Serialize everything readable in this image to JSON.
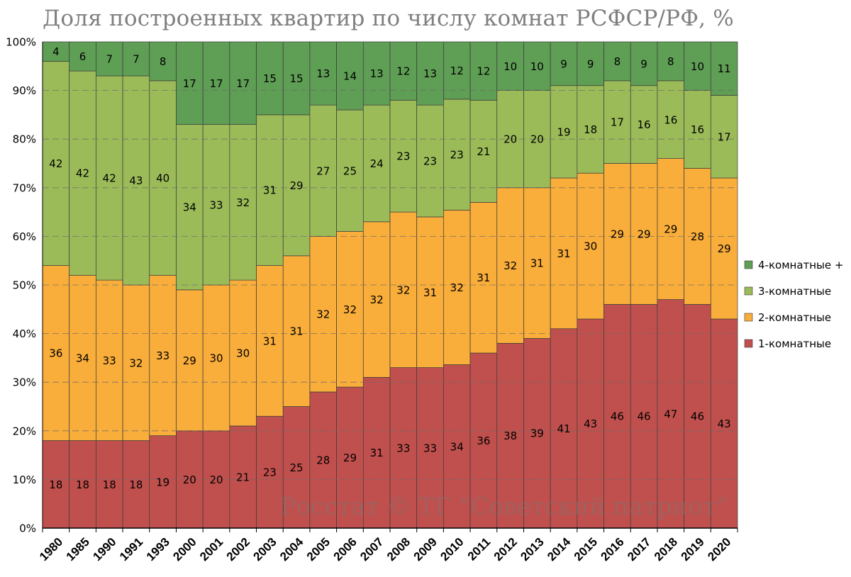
{
  "chart_data": {
    "type": "bar",
    "stacked": true,
    "title": "Доля построенных квартир по числу комнат РСФСР/РФ, %",
    "categories": [
      "1980",
      "1985",
      "1990",
      "1991",
      "1993",
      "2000",
      "2001",
      "2002",
      "2003",
      "2004",
      "2005",
      "2006",
      "2007",
      "2008",
      "2009",
      "2010",
      "2011",
      "2012",
      "2013",
      "2014",
      "2015",
      "2016",
      "2017",
      "2018",
      "2019",
      "2020"
    ],
    "series": [
      {
        "name": "1-комнатные",
        "color": "#c0504d",
        "values": [
          18,
          18,
          18,
          18,
          19,
          20,
          20,
          21,
          23,
          25,
          28,
          29,
          31,
          33,
          33,
          33.6,
          36,
          38,
          39,
          41,
          43,
          46,
          46,
          47,
          46,
          43
        ],
        "labels": [
          "18",
          "18",
          "18",
          "18",
          "19",
          "20",
          "20",
          "21",
          "23",
          "25",
          "28",
          "29",
          "31",
          "33",
          "33",
          "34",
          "36",
          "38",
          "39",
          "41",
          "43",
          "46",
          "46",
          "47",
          "46",
          "43"
        ]
      },
      {
        "name": "2-комнатные",
        "color": "#f9ad3a",
        "values": [
          36,
          34,
          33,
          32,
          33,
          29,
          30,
          30,
          31,
          31,
          32,
          32,
          32,
          32,
          31,
          31.8,
          31,
          32,
          31,
          31,
          30,
          29,
          29,
          29,
          28,
          29
        ],
        "labels": [
          "36",
          "34",
          "33",
          "32",
          "33",
          "29",
          "30",
          "30",
          "31",
          "31",
          "32",
          "32",
          "32",
          "32",
          "31",
          "32",
          "31",
          "32",
          "31",
          "31",
          "30",
          "29",
          "29",
          "29",
          "28",
          "29"
        ]
      },
      {
        "name": "3-комнатные",
        "color": "#9bbb59",
        "values": [
          42,
          42,
          42,
          43,
          40,
          34,
          33,
          32,
          31,
          29,
          27,
          25,
          24,
          23,
          23,
          22.8,
          21,
          20,
          20,
          19,
          18,
          17,
          16,
          16,
          16,
          17
        ],
        "labels": [
          "42",
          "42",
          "42",
          "43",
          "40",
          "34",
          "33",
          "32",
          "31",
          "29",
          "27",
          "25",
          "24",
          "23",
          "23",
          "23",
          "21",
          "20",
          "20",
          "19",
          "18",
          "17",
          "16",
          "16",
          "16",
          "17"
        ]
      },
      {
        "name": "4-комнатные +",
        "color": "#5f9e55",
        "values": [
          4,
          6,
          7,
          7,
          8,
          17,
          17,
          17,
          15,
          15,
          13,
          14,
          13,
          12,
          13,
          11.8,
          12,
          10,
          10,
          9,
          9,
          8,
          9,
          8,
          10,
          11
        ],
        "labels": [
          "4",
          "6",
          "7",
          "7",
          "8",
          "17",
          "17",
          "17",
          "15",
          "15",
          "13",
          "14",
          "13",
          "12",
          "13",
          "12",
          "12",
          "10",
          "10",
          "9",
          "9",
          "8",
          "9",
          "8",
          "10",
          "11"
        ]
      }
    ],
    "ylim": [
      0,
      100
    ],
    "yticks": [
      "0%",
      "10%",
      "20%",
      "30%",
      "40%",
      "50%",
      "60%",
      "70%",
      "80%",
      "90%",
      "100%"
    ],
    "xlabel": "",
    "ylabel": "",
    "grid": true,
    "legend": {
      "position": "right",
      "order": [
        "4-комнатные +",
        "3-комнатные",
        "2-комнатные",
        "1-комнатные"
      ]
    },
    "watermark": "Росстат © ТГ “Советский патриот”"
  }
}
